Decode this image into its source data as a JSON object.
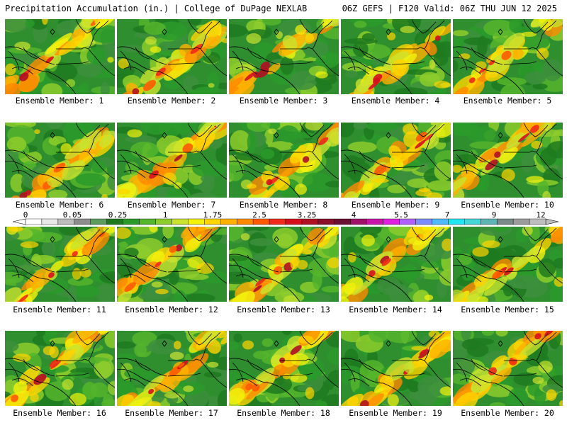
{
  "header": {
    "left_title": "Precipitation Accumulation (in.) | College of DuPage NEXLAB",
    "right_title": "06Z GEFS | F120 Valid: 06Z THU JUN 12 2025"
  },
  "legend": {
    "tick_labels": [
      "0",
      "0.05",
      "0.25",
      "1",
      "1.75",
      "2.5",
      "3.25",
      "4",
      "5.5",
      "7",
      "9",
      "12"
    ],
    "colors": [
      "#ffffff",
      "#e8e8e8",
      "#bcbcbc",
      "#8c8c8c",
      "#5e9c5e",
      "#1f7a1f",
      "#2a9a2a",
      "#55b52b",
      "#8dcc2c",
      "#c9e22f",
      "#f2f20d",
      "#ffd400",
      "#ffb000",
      "#ff8a00",
      "#ff5a00",
      "#f02a1a",
      "#d60f1f",
      "#b00f24",
      "#8a0f2a",
      "#6a1030",
      "#a0106a",
      "#c814a8",
      "#e020e0",
      "#b060ff",
      "#7a8cff",
      "#4fb8ff",
      "#22e6f2",
      "#44d6d6",
      "#5cb4b4",
      "#7a8a8a",
      "#9c9c9c",
      "#bebebe"
    ]
  },
  "panels": [
    {
      "label": "Ensemble Member: 1"
    },
    {
      "label": "Ensemble Member: 2"
    },
    {
      "label": "Ensemble Member: 3"
    },
    {
      "label": "Ensemble Member: 4"
    },
    {
      "label": "Ensemble Member: 5"
    },
    {
      "label": "Ensemble Member: 6"
    },
    {
      "label": "Ensemble Member: 7"
    },
    {
      "label": "Ensemble Member: 8"
    },
    {
      "label": "Ensemble Member: 9"
    },
    {
      "label": "Ensemble Member: 10"
    },
    {
      "label": "Ensemble Member: 11"
    },
    {
      "label": "Ensemble Member: 12"
    },
    {
      "label": "Ensemble Member: 13"
    },
    {
      "label": "Ensemble Member: 14"
    },
    {
      "label": "Ensemble Member: 15"
    },
    {
      "label": "Ensemble Member: 16"
    },
    {
      "label": "Ensemble Member: 17"
    },
    {
      "label": "Ensemble Member: 18"
    },
    {
      "label": "Ensemble Member: 19"
    },
    {
      "label": "Ensemble Member: 20"
    }
  ]
}
